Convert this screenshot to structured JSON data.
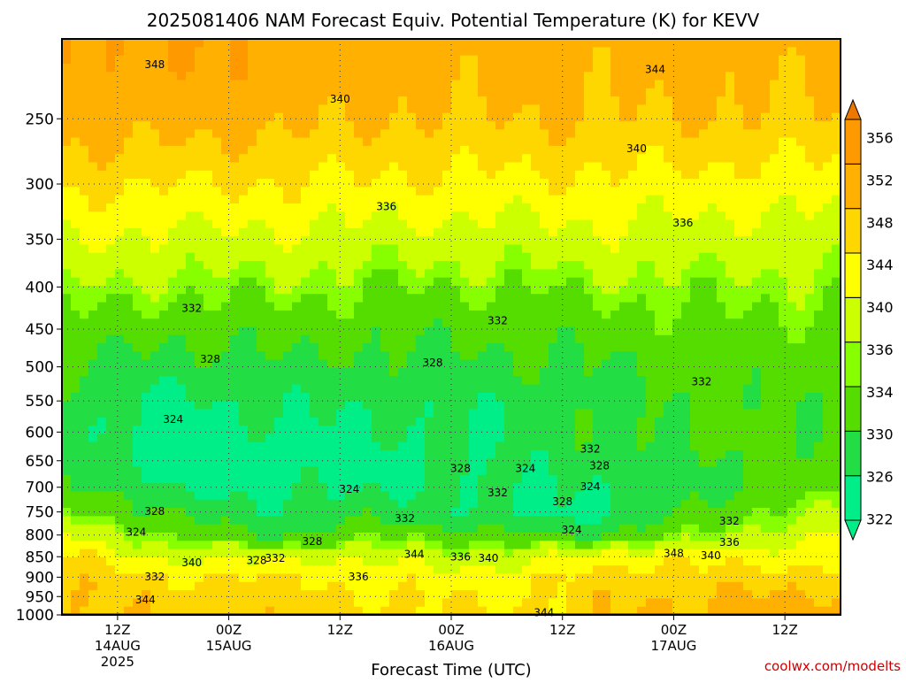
{
  "chart_data": {
    "type": "heatmap",
    "title": "2025081406 NAM Forecast Equiv. Potential Temperature (K) for KEVV",
    "xlabel": "Forecast Time (UTC)",
    "ylabel": "",
    "y_scale": "log-pressure",
    "y_ticks": [
      250,
      300,
      350,
      400,
      450,
      500,
      550,
      600,
      650,
      700,
      750,
      800,
      850,
      900,
      950,
      1000
    ],
    "ylim": [
      1000,
      200
    ],
    "x_ticks": [
      {
        "hours": 6,
        "l1": "12Z",
        "l2": "14AUG",
        "l3": "2025"
      },
      {
        "hours": 18,
        "l1": "00Z",
        "l2": "15AUG",
        "l3": ""
      },
      {
        "hours": 30,
        "l1": "12Z",
        "l2": "",
        "l3": ""
      },
      {
        "hours": 42,
        "l1": "00Z",
        "l2": "16AUG",
        "l3": ""
      },
      {
        "hours": 54,
        "l1": "12Z",
        "l2": "",
        "l3": ""
      },
      {
        "hours": 66,
        "l1": "00Z",
        "l2": "17AUG",
        "l3": ""
      },
      {
        "hours": 78,
        "l1": "12Z",
        "l2": "",
        "l3": ""
      }
    ],
    "xlim_hours": [
      0,
      84
    ],
    "grid": true,
    "colorbar": {
      "levels": [
        322,
        326,
        330,
        334,
        336,
        340,
        344,
        348,
        352,
        356
      ],
      "colors": [
        "#00ee88",
        "#22dd44",
        "#55dd00",
        "#88ff00",
        "#ccff00",
        "#ffff00",
        "#ffd700",
        "#ffb000",
        "#ff9900",
        "#ee7700"
      ]
    },
    "ground_color": "#a0522d",
    "profile_samples": [
      {
        "hours": 0,
        "theta_e": [
          350,
          345,
          340,
          336,
          333,
          330,
          328,
          327,
          329,
          332,
          336,
          341,
          345,
          347,
          348,
          348
        ]
      },
      {
        "hours": 12,
        "theta_e": [
          350,
          344,
          339,
          335,
          331,
          328,
          325,
          324,
          323,
          325,
          329,
          333,
          338,
          344,
          346,
          347
        ]
      },
      {
        "hours": 24,
        "theta_e": [
          349,
          344,
          339,
          335,
          332,
          329,
          327,
          325,
          324,
          325,
          327,
          329,
          340,
          344,
          346,
          347
        ]
      },
      {
        "hours": 36,
        "theta_e": [
          348,
          343,
          338,
          334,
          331,
          329,
          327,
          326,
          325,
          326,
          329,
          334,
          338,
          342,
          344,
          345
        ]
      },
      {
        "hours": 48,
        "theta_e": [
          348,
          343,
          338,
          334,
          331,
          329,
          327,
          326,
          327,
          326,
          325,
          330,
          338,
          342,
          343,
          344
        ]
      },
      {
        "hours": 60,
        "theta_e": [
          348,
          343,
          339,
          335,
          332,
          330,
          329,
          330,
          328,
          326,
          326,
          330,
          343,
          346,
          347,
          348
        ]
      },
      {
        "hours": 72,
        "theta_e": [
          348,
          342,
          338,
          335,
          333,
          332,
          331,
          331,
          330,
          330,
          333,
          336,
          342,
          346,
          348,
          349
        ]
      },
      {
        "hours": 84,
        "theta_e": [
          347,
          342,
          338,
          335,
          333,
          332,
          331,
          331,
          332,
          333,
          336,
          340,
          343,
          346,
          349,
          350
        ]
      }
    ],
    "contour_labels": [
      {
        "text": "348",
        "hours": 10,
        "p": 215
      },
      {
        "text": "344",
        "hours": 64,
        "p": 218
      },
      {
        "text": "340",
        "hours": 30,
        "p": 237
      },
      {
        "text": "340",
        "hours": 62,
        "p": 272
      },
      {
        "text": "336",
        "hours": 35,
        "p": 320
      },
      {
        "text": "336",
        "hours": 67,
        "p": 335
      },
      {
        "text": "332",
        "hours": 14,
        "p": 425
      },
      {
        "text": "332",
        "hours": 47,
        "p": 440
      },
      {
        "text": "332",
        "hours": 69,
        "p": 522
      },
      {
        "text": "328",
        "hours": 16,
        "p": 490
      },
      {
        "text": "328",
        "hours": 40,
        "p": 495
      },
      {
        "text": "324",
        "hours": 12,
        "p": 580
      },
      {
        "text": "324",
        "hours": 31,
        "p": 705
      },
      {
        "text": "328",
        "hours": 43,
        "p": 665
      },
      {
        "text": "324",
        "hours": 50,
        "p": 665
      },
      {
        "text": "332",
        "hours": 47,
        "p": 712
      },
      {
        "text": "332",
        "hours": 57,
        "p": 630
      },
      {
        "text": "328",
        "hours": 58,
        "p": 660
      },
      {
        "text": "324",
        "hours": 57,
        "p": 700
      },
      {
        "text": "328",
        "hours": 54,
        "p": 730
      },
      {
        "text": "332",
        "hours": 37,
        "p": 765
      },
      {
        "text": "328",
        "hours": 10,
        "p": 750
      },
      {
        "text": "324",
        "hours": 8,
        "p": 795
      },
      {
        "text": "328",
        "hours": 27,
        "p": 815
      },
      {
        "text": "340",
        "hours": 14,
        "p": 865
      },
      {
        "text": "328",
        "hours": 21,
        "p": 860
      },
      {
        "text": "332",
        "hours": 23,
        "p": 855
      },
      {
        "text": "332",
        "hours": 10,
        "p": 900
      },
      {
        "text": "336",
        "hours": 32,
        "p": 900
      },
      {
        "text": "344",
        "hours": 38,
        "p": 845
      },
      {
        "text": "336",
        "hours": 43,
        "p": 852
      },
      {
        "text": "340",
        "hours": 46,
        "p": 855
      },
      {
        "text": "324",
        "hours": 55,
        "p": 790
      },
      {
        "text": "332",
        "hours": 72,
        "p": 770
      },
      {
        "text": "336",
        "hours": 72,
        "p": 818
      },
      {
        "text": "348",
        "hours": 66,
        "p": 843
      },
      {
        "text": "340",
        "hours": 70,
        "p": 848
      },
      {
        "text": "344",
        "hours": 9,
        "p": 960
      },
      {
        "text": "344",
        "hours": 52,
        "p": 995
      }
    ]
  },
  "credit": "coolwx.com/modelts"
}
